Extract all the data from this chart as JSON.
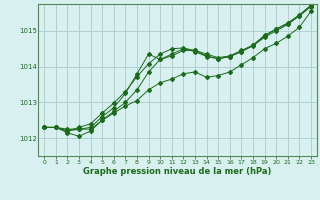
{
  "title": "Graphe pression niveau de la mer (hPa)",
  "background_color": "#d8f0f0",
  "grid_color": "#b0d0d0",
  "line_color": "#1a6b1a",
  "spine_color": "#558855",
  "xlim": [
    -0.5,
    23.5
  ],
  "ylim": [
    1011.5,
    1015.75
  ],
  "xticks": [
    0,
    1,
    2,
    3,
    4,
    5,
    6,
    7,
    8,
    9,
    10,
    11,
    12,
    13,
    14,
    15,
    16,
    17,
    18,
    19,
    20,
    21,
    22,
    23
  ],
  "yticks": [
    1012,
    1013,
    1014,
    1015
  ],
  "series": [
    [
      1012.3,
      1012.3,
      1012.25,
      1012.25,
      1012.25,
      1012.5,
      1012.7,
      1012.9,
      1013.05,
      1013.35,
      1013.55,
      1013.65,
      1013.8,
      1013.85,
      1013.7,
      1013.75,
      1013.85,
      1014.05,
      1014.25,
      1014.5,
      1014.65,
      1014.85,
      1015.1,
      1015.55
    ],
    [
      1012.3,
      1012.3,
      1012.15,
      1012.05,
      1012.2,
      1012.5,
      1012.75,
      1013.0,
      1013.35,
      1013.85,
      1014.2,
      1014.3,
      1014.45,
      1014.45,
      1014.35,
      1014.25,
      1014.3,
      1014.45,
      1014.6,
      1014.85,
      1015.05,
      1015.2,
      1015.42,
      1015.68
    ],
    [
      1012.3,
      1012.3,
      1012.2,
      1012.25,
      1012.3,
      1012.6,
      1012.85,
      1013.25,
      1013.8,
      1014.35,
      1014.2,
      1014.35,
      1014.5,
      1014.42,
      1014.28,
      1014.22,
      1014.28,
      1014.42,
      1014.58,
      1014.82,
      1015.0,
      1015.18,
      1015.42,
      1015.7
    ],
    [
      1012.3,
      1012.3,
      1012.2,
      1012.3,
      1012.4,
      1012.7,
      1012.98,
      1013.3,
      1013.72,
      1014.08,
      1014.35,
      1014.5,
      1014.52,
      1014.45,
      1014.3,
      1014.22,
      1014.28,
      1014.42,
      1014.6,
      1014.88,
      1015.05,
      1015.22,
      1015.45,
      1015.72
    ]
  ]
}
